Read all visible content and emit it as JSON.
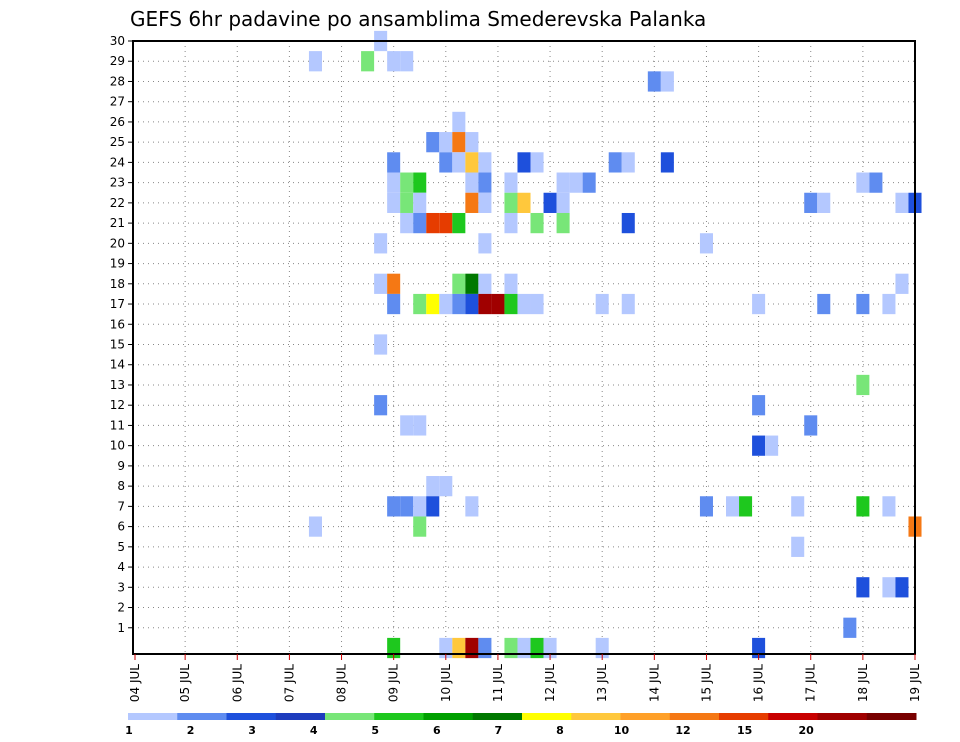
{
  "chart_data": {
    "type": "heatmap",
    "title": "GEFS 6hr padavine po ansamblima Smederevska Palanka",
    "x_tick_labels": [
      "04 JUL",
      "05 JUL",
      "06 JUL",
      "07 JUL",
      "08 JUL",
      "09 JUL",
      "10 JUL",
      "11 JUL",
      "12 JUL",
      "13 JUL",
      "14 JUL",
      "15 JUL",
      "16 JUL",
      "17 JUL",
      "18 JUL",
      "19 JUL"
    ],
    "y_tick_labels": [
      "1",
      "2",
      "3",
      "4",
      "5",
      "6",
      "7",
      "8",
      "9",
      "10",
      "11",
      "12",
      "13",
      "14",
      "15",
      "16",
      "17",
      "18",
      "19",
      "20",
      "21",
      "22",
      "23",
      "24",
      "25",
      "26",
      "27",
      "28",
      "29",
      "30"
    ],
    "xlim_steps": [
      0,
      60
    ],
    "ylim": [
      0,
      30
    ],
    "grid": true,
    "colorbar": {
      "labels": [
        "1",
        "2",
        "3",
        "4",
        "5",
        "6",
        "7",
        "8",
        "10",
        "12",
        "15",
        "20"
      ],
      "colors": [
        "#b4c8ff",
        "#5f8cf0",
        "#1e50dc",
        "#1e3cbe",
        "#78e678",
        "#1ec81e",
        "#00a000",
        "#007800",
        "#ffff00",
        "#ffc83c",
        "#ffa028",
        "#f57814",
        "#e63c00",
        "#c80000",
        "#a00000",
        "#780000"
      ]
    },
    "cells": [
      [
        19,
        30,
        1
      ],
      [
        14,
        29,
        1
      ],
      [
        18,
        29,
        5
      ],
      [
        20,
        29,
        1
      ],
      [
        21,
        29,
        1
      ],
      [
        40,
        28,
        2
      ],
      [
        41,
        28,
        1
      ],
      [
        25,
        26,
        1
      ],
      [
        23,
        25,
        2
      ],
      [
        24,
        25,
        1
      ],
      [
        25,
        25,
        12
      ],
      [
        26,
        25,
        1
      ],
      [
        20,
        24,
        2
      ],
      [
        24,
        24,
        2
      ],
      [
        25,
        24,
        1
      ],
      [
        26,
        24,
        10
      ],
      [
        27,
        24,
        1
      ],
      [
        30,
        24,
        3
      ],
      [
        31,
        24,
        1
      ],
      [
        37,
        24,
        2
      ],
      [
        38,
        24,
        1
      ],
      [
        41,
        24,
        3
      ],
      [
        20,
        23,
        1
      ],
      [
        21,
        23,
        5
      ],
      [
        22,
        23,
        6
      ],
      [
        26,
        23,
        1
      ],
      [
        27,
        23,
        2
      ],
      [
        29,
        23,
        1
      ],
      [
        33,
        23,
        1
      ],
      [
        34,
        23,
        1
      ],
      [
        35,
        23,
        2
      ],
      [
        56,
        23,
        1
      ],
      [
        57,
        23,
        2
      ],
      [
        20,
        22,
        1
      ],
      [
        21,
        22,
        5
      ],
      [
        22,
        22,
        1
      ],
      [
        26,
        22,
        12
      ],
      [
        27,
        22,
        1
      ],
      [
        29,
        22,
        5
      ],
      [
        30,
        22,
        10
      ],
      [
        32,
        22,
        3
      ],
      [
        33,
        22,
        1
      ],
      [
        52,
        22,
        2
      ],
      [
        53,
        22,
        1
      ],
      [
        59,
        22,
        1
      ],
      [
        60,
        22,
        3
      ],
      [
        21,
        21,
        1
      ],
      [
        22,
        21,
        2
      ],
      [
        23,
        21,
        15
      ],
      [
        24,
        21,
        15
      ],
      [
        25,
        21,
        6
      ],
      [
        29,
        21,
        1
      ],
      [
        31,
        21,
        5
      ],
      [
        33,
        21,
        5
      ],
      [
        38,
        21,
        3
      ],
      [
        19,
        20,
        1
      ],
      [
        27,
        20,
        1
      ],
      [
        44,
        20,
        1
      ],
      [
        19,
        18,
        1
      ],
      [
        20,
        18,
        12
      ],
      [
        25,
        18,
        5
      ],
      [
        26,
        18,
        7
      ],
      [
        27,
        18,
        1
      ],
      [
        29,
        18,
        1
      ],
      [
        59,
        18,
        1
      ],
      [
        20,
        17,
        2
      ],
      [
        22,
        17,
        5
      ],
      [
        23,
        17,
        8
      ],
      [
        24,
        17,
        1
      ],
      [
        25,
        17,
        2
      ],
      [
        26,
        17,
        3
      ],
      [
        27,
        17,
        20
      ],
      [
        28,
        17,
        20
      ],
      [
        29,
        17,
        6
      ],
      [
        30,
        17,
        1
      ],
      [
        31,
        17,
        1
      ],
      [
        36,
        17,
        1
      ],
      [
        38,
        17,
        1
      ],
      [
        48,
        17,
        1
      ],
      [
        53,
        17,
        2
      ],
      [
        56,
        17,
        2
      ],
      [
        58,
        17,
        1
      ],
      [
        19,
        15,
        1
      ],
      [
        56,
        13,
        5
      ],
      [
        19,
        12,
        2
      ],
      [
        48,
        12,
        2
      ],
      [
        21,
        11,
        1
      ],
      [
        22,
        11,
        1
      ],
      [
        52,
        11,
        2
      ],
      [
        48,
        10,
        3
      ],
      [
        49,
        10,
        1
      ],
      [
        23,
        8,
        1
      ],
      [
        24,
        8,
        1
      ],
      [
        20,
        7,
        2
      ],
      [
        21,
        7,
        2
      ],
      [
        22,
        7,
        1
      ],
      [
        23,
        7,
        3
      ],
      [
        26,
        7,
        1
      ],
      [
        44,
        7,
        2
      ],
      [
        46,
        7,
        1
      ],
      [
        47,
        7,
        6
      ],
      [
        51,
        7,
        1
      ],
      [
        56,
        7,
        6
      ],
      [
        58,
        7,
        1
      ],
      [
        14,
        6,
        1
      ],
      [
        22,
        6,
        5
      ],
      [
        60,
        6,
        12
      ],
      [
        51,
        5,
        1
      ],
      [
        56,
        3,
        3
      ],
      [
        58,
        3,
        1
      ],
      [
        59,
        3,
        3
      ],
      [
        55,
        1,
        2
      ],
      [
        20,
        0,
        6
      ],
      [
        24,
        0,
        1
      ],
      [
        25,
        0,
        10
      ],
      [
        26,
        0,
        20
      ],
      [
        27,
        0,
        2
      ],
      [
        29,
        0,
        5
      ],
      [
        30,
        0,
        1
      ],
      [
        31,
        0,
        6
      ],
      [
        32,
        0,
        1
      ],
      [
        36,
        0,
        1
      ],
      [
        48,
        0,
        3
      ]
    ]
  }
}
